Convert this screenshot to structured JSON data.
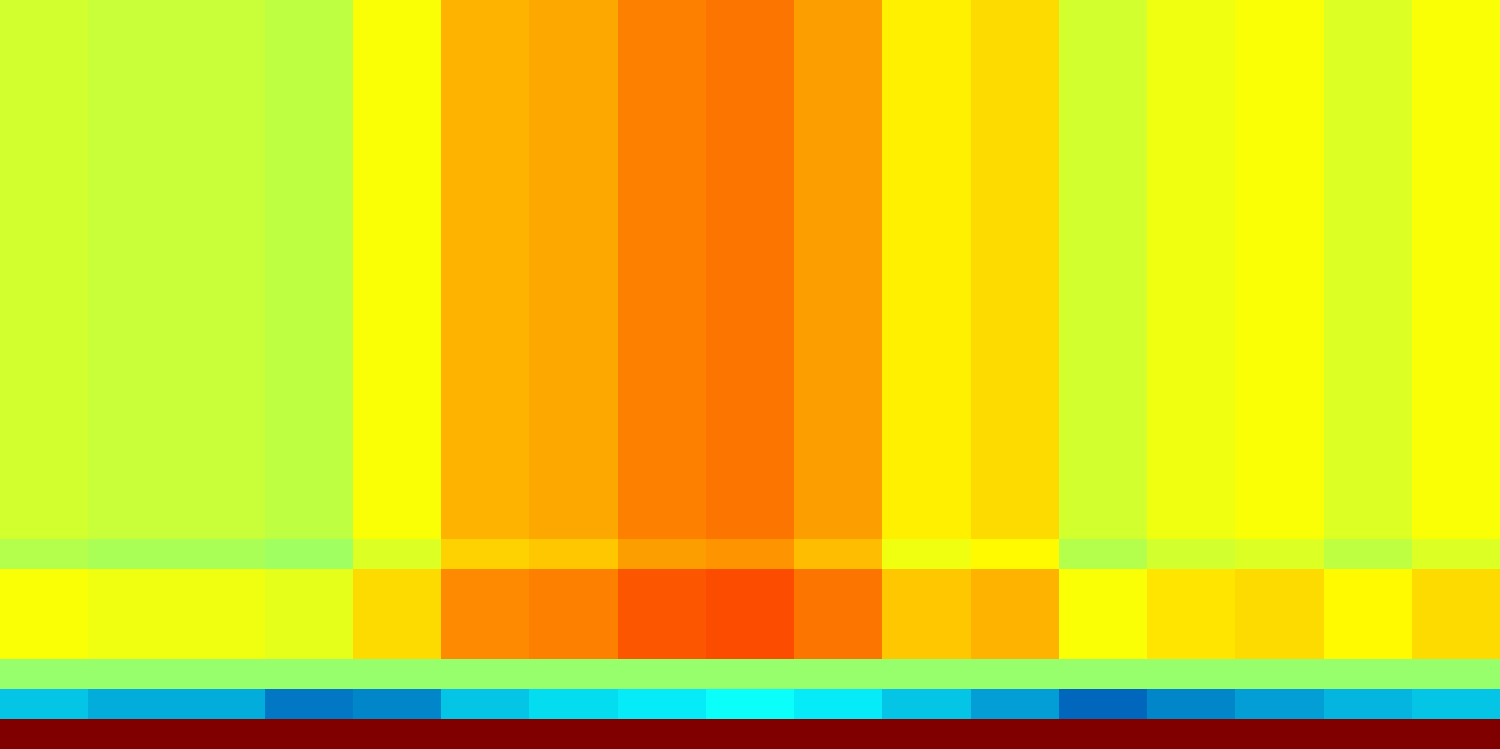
{
  "chart_data": {
    "type": "heatmap",
    "tick_labels": false,
    "zlim": [
      0,
      1
    ],
    "cells": [
      [
        0.58,
        0.57,
        0.57,
        0.56,
        0.62,
        0.7,
        0.71,
        0.75,
        0.76,
        0.72,
        0.64,
        0.66,
        0.58,
        0.61,
        0.62,
        0.59,
        0.62
      ],
      [
        0.58,
        0.57,
        0.57,
        0.56,
        0.62,
        0.7,
        0.71,
        0.75,
        0.76,
        0.72,
        0.64,
        0.66,
        0.58,
        0.61,
        0.62,
        0.59,
        0.62
      ],
      [
        0.58,
        0.57,
        0.57,
        0.56,
        0.62,
        0.7,
        0.71,
        0.75,
        0.76,
        0.72,
        0.64,
        0.66,
        0.58,
        0.61,
        0.62,
        0.59,
        0.62
      ],
      [
        0.58,
        0.57,
        0.57,
        0.56,
        0.62,
        0.7,
        0.71,
        0.75,
        0.76,
        0.72,
        0.64,
        0.66,
        0.58,
        0.61,
        0.62,
        0.59,
        0.62
      ],
      [
        0.58,
        0.57,
        0.57,
        0.56,
        0.62,
        0.7,
        0.71,
        0.75,
        0.76,
        0.72,
        0.64,
        0.66,
        0.58,
        0.61,
        0.62,
        0.59,
        0.62
      ],
      [
        0.58,
        0.57,
        0.57,
        0.56,
        0.62,
        0.7,
        0.71,
        0.75,
        0.76,
        0.72,
        0.64,
        0.66,
        0.58,
        0.61,
        0.62,
        0.59,
        0.62
      ],
      [
        0.58,
        0.57,
        0.57,
        0.56,
        0.62,
        0.7,
        0.71,
        0.75,
        0.76,
        0.72,
        0.64,
        0.66,
        0.58,
        0.61,
        0.62,
        0.59,
        0.62
      ],
      [
        0.58,
        0.57,
        0.57,
        0.56,
        0.62,
        0.7,
        0.71,
        0.75,
        0.76,
        0.72,
        0.64,
        0.66,
        0.58,
        0.61,
        0.62,
        0.59,
        0.62
      ],
      [
        0.58,
        0.57,
        0.57,
        0.56,
        0.62,
        0.7,
        0.71,
        0.75,
        0.76,
        0.72,
        0.64,
        0.66,
        0.58,
        0.61,
        0.62,
        0.59,
        0.62
      ],
      [
        0.58,
        0.57,
        0.57,
        0.56,
        0.62,
        0.7,
        0.71,
        0.75,
        0.76,
        0.72,
        0.64,
        0.66,
        0.58,
        0.61,
        0.62,
        0.59,
        0.62
      ],
      [
        0.58,
        0.57,
        0.57,
        0.56,
        0.62,
        0.7,
        0.71,
        0.75,
        0.76,
        0.72,
        0.64,
        0.66,
        0.58,
        0.61,
        0.62,
        0.59,
        0.62
      ],
      [
        0.58,
        0.57,
        0.57,
        0.56,
        0.62,
        0.7,
        0.71,
        0.75,
        0.76,
        0.72,
        0.64,
        0.66,
        0.58,
        0.61,
        0.62,
        0.59,
        0.62
      ],
      [
        0.58,
        0.57,
        0.57,
        0.56,
        0.62,
        0.7,
        0.71,
        0.75,
        0.76,
        0.72,
        0.64,
        0.66,
        0.58,
        0.61,
        0.62,
        0.59,
        0.62
      ],
      [
        0.58,
        0.57,
        0.57,
        0.56,
        0.62,
        0.7,
        0.71,
        0.75,
        0.76,
        0.72,
        0.64,
        0.66,
        0.58,
        0.61,
        0.62,
        0.59,
        0.62
      ],
      [
        0.58,
        0.57,
        0.57,
        0.56,
        0.62,
        0.7,
        0.71,
        0.75,
        0.76,
        0.72,
        0.64,
        0.66,
        0.58,
        0.61,
        0.62,
        0.59,
        0.62
      ],
      [
        0.58,
        0.57,
        0.57,
        0.56,
        0.62,
        0.7,
        0.71,
        0.75,
        0.76,
        0.72,
        0.64,
        0.66,
        0.58,
        0.61,
        0.62,
        0.59,
        0.62
      ],
      [
        0.58,
        0.57,
        0.57,
        0.56,
        0.62,
        0.7,
        0.71,
        0.75,
        0.76,
        0.72,
        0.64,
        0.66,
        0.58,
        0.61,
        0.62,
        0.59,
        0.62
      ],
      [
        0.58,
        0.57,
        0.57,
        0.56,
        0.62,
        0.7,
        0.71,
        0.75,
        0.76,
        0.72,
        0.64,
        0.66,
        0.58,
        0.61,
        0.62,
        0.59,
        0.62
      ],
      [
        0.55,
        0.54,
        0.54,
        0.53,
        0.59,
        0.67,
        0.68,
        0.72,
        0.73,
        0.69,
        0.61,
        0.63,
        0.55,
        0.58,
        0.59,
        0.56,
        0.59
      ],
      [
        0.62,
        0.61,
        0.61,
        0.6,
        0.66,
        0.74,
        0.75,
        0.79,
        0.8,
        0.76,
        0.68,
        0.7,
        0.62,
        0.65,
        0.66,
        0.63,
        0.66
      ],
      [
        0.62,
        0.61,
        0.61,
        0.6,
        0.66,
        0.74,
        0.75,
        0.79,
        0.8,
        0.76,
        0.68,
        0.7,
        0.62,
        0.65,
        0.66,
        0.63,
        0.66
      ],
      [
        0.62,
        0.61,
        0.61,
        0.6,
        0.66,
        0.74,
        0.75,
        0.79,
        0.8,
        0.76,
        0.68,
        0.7,
        0.62,
        0.65,
        0.66,
        0.63,
        0.66
      ],
      [
        0.52,
        0.52,
        0.52,
        0.52,
        0.52,
        0.52,
        0.52,
        0.52,
        0.52,
        0.52,
        0.52,
        0.52,
        0.52,
        0.52,
        0.52,
        0.52,
        0.52
      ],
      [
        0.3,
        0.27,
        0.27,
        0.2,
        0.22,
        0.3,
        0.33,
        0.35,
        0.38,
        0.35,
        0.3,
        0.25,
        0.18,
        0.22,
        0.25,
        0.28,
        0.3
      ],
      [
        1.0,
        1.0,
        1.0,
        1.0,
        1.0,
        1.0,
        1.0,
        1.0,
        1.0,
        1.0,
        1.0,
        1.0,
        1.0,
        1.0,
        1.0,
        1.0,
        1.0
      ]
    ]
  }
}
